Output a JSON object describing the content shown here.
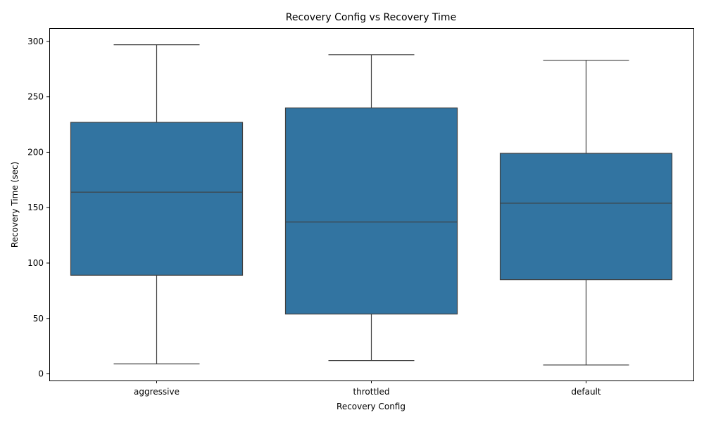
{
  "chart_data": {
    "type": "box",
    "title": "Recovery Config vs Recovery Time",
    "xlabel": "Recovery Config",
    "ylabel": "Recovery Time (sec)",
    "ylim": [
      -6,
      312
    ],
    "yticks": [
      0,
      50,
      100,
      150,
      200,
      250,
      300
    ],
    "grid": false,
    "box_color": "#3274a1",
    "line_color": "#3f3f3f",
    "categories": [
      "aggressive",
      "throttled",
      "default"
    ],
    "boxes": [
      {
        "category": "aggressive",
        "min": 9,
        "q1": 89,
        "median": 164,
        "q3": 227,
        "max": 297
      },
      {
        "category": "throttled",
        "min": 12,
        "q1": 54,
        "median": 137,
        "q3": 240,
        "max": 288
      },
      {
        "category": "default",
        "min": 8,
        "q1": 85,
        "median": 154,
        "q3": 199,
        "max": 283
      }
    ]
  }
}
